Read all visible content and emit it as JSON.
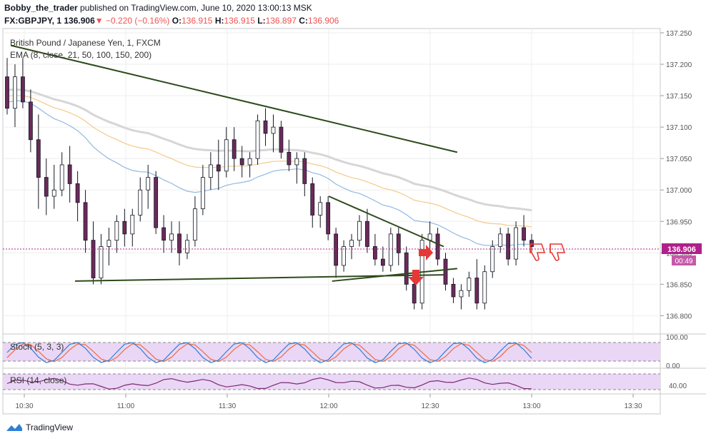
{
  "header": {
    "author": "Bobby_the_trader",
    "published": "published on TradingView.com, June 10, 2020 13:00:13 MSK",
    "symbol": "FX:GBPJPY, 1",
    "last": "136.906",
    "change": "−0.220 (−0.16%)",
    "o_label": "O:",
    "o": "136.915",
    "h_label": "H:",
    "h": "136.915",
    "l_label": "L:",
    "l": "136.897",
    "c_label": "C:",
    "c": "136.906"
  },
  "legend": {
    "instrument": "British Pound / Japanese Yen, 1, FXCM",
    "ema": "EMA (8, close, 21, 50, 100, 150, 200)",
    "stoch": "Stoch (5, 3, 3)",
    "rsi": "RSI (14, close)"
  },
  "footer": {
    "brand": "TradingView"
  },
  "colors": {
    "up": "#131722",
    "candle": "#6b2a5a",
    "trend": "#2e4a1c",
    "ema_blue": "#90b8e0",
    "ema_orange": "#f5c98a",
    "ema_grey": "#d6d6d6",
    "price_tag": "#b0208a",
    "stoch_k": "#2f7fd9",
    "stoch_d": "#ef6c3f",
    "rsi_line": "#7a2a72",
    "panel_fill": "#ead6f5",
    "arrow": "#e53935"
  },
  "chart_data": {
    "type": "candlestick",
    "y_ticks": [
      "137.250",
      "137.200",
      "137.150",
      "137.100",
      "137.050",
      "137.000",
      "136.950",
      "136.900",
      "136.850",
      "136.800"
    ],
    "ylim": [
      136.78,
      137.25
    ],
    "x_ticks": [
      "10:30",
      "11:00",
      "11:30",
      "12:00",
      "12:30",
      "13:00",
      "13:30"
    ],
    "last_price": "136.906",
    "countdown": "00:49",
    "stoch_ticks": [
      "100.00",
      "0.00"
    ],
    "rsi_ticks": [
      "40.00"
    ],
    "candles": [
      [
        137.18,
        137.21,
        137.12,
        137.13
      ],
      [
        137.13,
        137.2,
        137.1,
        137.18
      ],
      [
        137.18,
        137.21,
        137.13,
        137.14
      ],
      [
        137.14,
        137.16,
        137.06,
        137.08
      ],
      [
        137.08,
        137.12,
        136.97,
        137.02
      ],
      [
        137.02,
        137.05,
        136.96,
        136.99
      ],
      [
        136.99,
        137.04,
        136.97,
        137.0
      ],
      [
        137.0,
        137.06,
        136.99,
        137.04
      ],
      [
        137.04,
        137.07,
        136.98,
        137.01
      ],
      [
        137.01,
        137.03,
        136.95,
        136.98
      ],
      [
        136.98,
        137.0,
        136.9,
        136.92
      ],
      [
        136.92,
        136.95,
        136.85,
        136.86
      ],
      [
        136.86,
        136.93,
        136.85,
        136.91
      ],
      [
        136.91,
        136.94,
        136.88,
        136.92
      ],
      [
        136.92,
        136.96,
        136.9,
        136.95
      ],
      [
        136.95,
        136.97,
        136.91,
        136.93
      ],
      [
        136.93,
        136.97,
        136.91,
        136.96
      ],
      [
        136.96,
        137.02,
        136.95,
        137.0
      ],
      [
        137.0,
        137.04,
        136.97,
        137.02
      ],
      [
        137.02,
        137.03,
        136.93,
        136.94
      ],
      [
        136.94,
        136.96,
        136.9,
        136.92
      ],
      [
        136.92,
        136.95,
        136.9,
        136.93
      ],
      [
        136.93,
        136.95,
        136.88,
        136.9
      ],
      [
        136.9,
        136.93,
        136.89,
        136.92
      ],
      [
        136.92,
        136.99,
        136.91,
        136.97
      ],
      [
        136.97,
        137.04,
        136.96,
        137.02
      ],
      [
        137.02,
        137.06,
        137.0,
        137.04
      ],
      [
        137.04,
        137.08,
        137.0,
        137.03
      ],
      [
        137.03,
        137.1,
        137.02,
        137.08
      ],
      [
        137.08,
        137.1,
        137.03,
        137.05
      ],
      [
        137.05,
        137.07,
        137.02,
        137.04
      ],
      [
        137.04,
        137.06,
        137.02,
        137.05
      ],
      [
        137.05,
        137.12,
        137.04,
        137.11
      ],
      [
        137.11,
        137.13,
        137.07,
        137.09
      ],
      [
        137.09,
        137.12,
        137.06,
        137.1
      ],
      [
        137.1,
        137.11,
        137.05,
        137.06
      ],
      [
        137.06,
        137.08,
        137.03,
        137.04
      ],
      [
        137.04,
        137.06,
        137.01,
        137.05
      ],
      [
        137.05,
        137.06,
        136.99,
        137.01
      ],
      [
        137.01,
        137.02,
        136.94,
        136.96
      ],
      [
        136.96,
        136.99,
        136.94,
        136.98
      ],
      [
        136.98,
        136.99,
        136.92,
        136.93
      ],
      [
        136.93,
        136.94,
        136.86,
        136.88
      ],
      [
        136.88,
        136.92,
        136.87,
        136.91
      ],
      [
        136.91,
        136.93,
        136.89,
        136.92
      ],
      [
        136.92,
        136.96,
        136.91,
        136.95
      ],
      [
        136.95,
        136.97,
        136.9,
        136.91
      ],
      [
        136.91,
        136.93,
        136.88,
        136.89
      ],
      [
        136.89,
        136.91,
        136.87,
        136.88
      ],
      [
        136.88,
        136.94,
        136.87,
        136.93
      ],
      [
        136.93,
        136.94,
        136.88,
        136.9
      ],
      [
        136.9,
        136.91,
        136.84,
        136.85
      ],
      [
        136.85,
        136.87,
        136.81,
        136.82
      ],
      [
        136.82,
        136.93,
        136.81,
        136.92
      ],
      [
        136.92,
        136.95,
        136.9,
        136.93
      ],
      [
        136.93,
        136.94,
        136.88,
        136.89
      ],
      [
        136.89,
        136.9,
        136.84,
        136.85
      ],
      [
        136.85,
        136.86,
        136.82,
        136.83
      ],
      [
        136.83,
        136.85,
        136.81,
        136.84
      ],
      [
        136.84,
        136.87,
        136.83,
        136.86
      ],
      [
        136.86,
        136.89,
        136.81,
        136.82
      ],
      [
        136.82,
        136.88,
        136.81,
        136.87
      ],
      [
        136.87,
        136.92,
        136.86,
        136.91
      ],
      [
        136.91,
        136.94,
        136.9,
        136.93
      ],
      [
        136.93,
        136.94,
        136.88,
        136.89
      ],
      [
        136.89,
        136.95,
        136.88,
        136.94
      ],
      [
        136.94,
        136.96,
        136.91,
        136.92
      ],
      [
        136.92,
        136.93,
        136.9,
        136.91
      ]
    ],
    "trendlines": [
      {
        "from": [
          "10:26",
          137.23
        ],
        "to": [
          "12:38",
          137.06
        ]
      },
      {
        "from": [
          "12:00",
          136.99
        ],
        "to": [
          "12:34",
          136.91
        ]
      },
      {
        "from": [
          "10:45",
          136.855
        ],
        "to": [
          "12:34",
          136.865
        ]
      },
      {
        "from": [
          "12:01",
          136.855
        ],
        "to": [
          "12:38",
          136.875
        ]
      }
    ]
  }
}
